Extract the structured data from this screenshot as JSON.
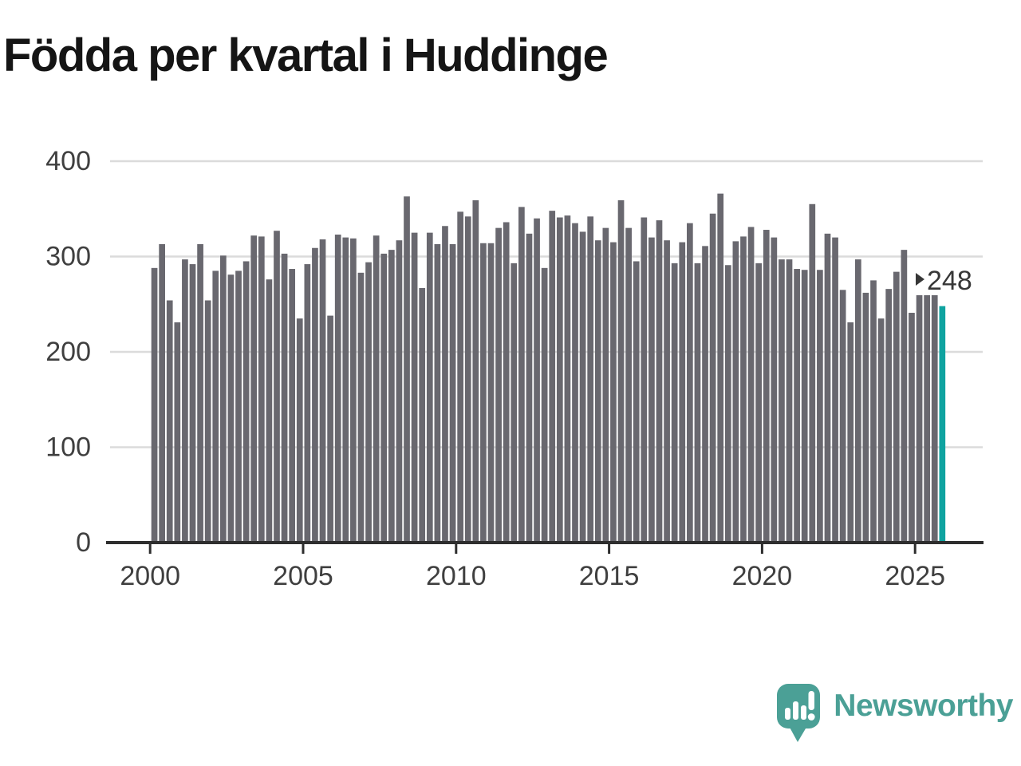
{
  "title": "Födda per kvartal i Huddinge",
  "annotation": {
    "marker": "right-triangle",
    "label": "248"
  },
  "logo": {
    "text": "Newsworthy"
  },
  "colors": {
    "title": "#151515",
    "bar": "#69686F",
    "highlight": "#0FA3A0",
    "grid": "#DBDBDB",
    "axis": "#2E2E2E",
    "tick_text": "#3f3f3f",
    "annotation_text": "#373737",
    "logo": "#4BA096",
    "background": "#FFFFFF"
  },
  "chart_data": {
    "type": "bar",
    "title": "Födda per kvartal i Huddinge",
    "xlabel": "",
    "ylabel": "",
    "ylim": [
      0,
      400
    ],
    "yticks": [
      0,
      100,
      200,
      300,
      400
    ],
    "xticks": [
      2000,
      2005,
      2010,
      2015,
      2020,
      2025
    ],
    "grid": "horizontal",
    "legend": "none",
    "bar_color": "#69686F",
    "highlight": {
      "index": 103,
      "category": "2025 K4",
      "value": 248,
      "label": "248",
      "color": "#0FA3A0"
    },
    "categories": [
      "2000 K1",
      "2000 K2",
      "2000 K3",
      "2000 K4",
      "2001 K1",
      "2001 K2",
      "2001 K3",
      "2001 K4",
      "2002 K1",
      "2002 K2",
      "2002 K3",
      "2002 K4",
      "2003 K1",
      "2003 K2",
      "2003 K3",
      "2003 K4",
      "2004 K1",
      "2004 K2",
      "2004 K3",
      "2004 K4",
      "2005 K1",
      "2005 K2",
      "2005 K3",
      "2005 K4",
      "2006 K1",
      "2006 K2",
      "2006 K3",
      "2006 K4",
      "2007 K1",
      "2007 K2",
      "2007 K3",
      "2007 K4",
      "2008 K1",
      "2008 K2",
      "2008 K3",
      "2008 K4",
      "2009 K1",
      "2009 K2",
      "2009 K3",
      "2009 K4",
      "2010 K1",
      "2010 K2",
      "2010 K3",
      "2010 K4",
      "2011 K1",
      "2011 K2",
      "2011 K3",
      "2011 K4",
      "2012 K1",
      "2012 K2",
      "2012 K3",
      "2012 K4",
      "2013 K1",
      "2013 K2",
      "2013 K3",
      "2013 K4",
      "2014 K1",
      "2014 K2",
      "2014 K3",
      "2014 K4",
      "2015 K1",
      "2015 K2",
      "2015 K3",
      "2015 K4",
      "2016 K1",
      "2016 K2",
      "2016 K3",
      "2016 K4",
      "2017 K1",
      "2017 K2",
      "2017 K3",
      "2017 K4",
      "2018 K1",
      "2018 K2",
      "2018 K3",
      "2018 K4",
      "2019 K1",
      "2019 K2",
      "2019 K3",
      "2019 K4",
      "2020 K1",
      "2020 K2",
      "2020 K3",
      "2020 K4",
      "2021 K1",
      "2021 K2",
      "2021 K3",
      "2021 K4",
      "2022 K1",
      "2022 K2",
      "2022 K3",
      "2022 K4",
      "2023 K1",
      "2023 K2",
      "2023 K3",
      "2023 K4",
      "2024 K1",
      "2024 K2",
      "2024 K3",
      "2024 K4",
      "2025 K1",
      "2025 K2",
      "2025 K3",
      "2025 K4"
    ],
    "values": [
      288,
      313,
      254,
      231,
      297,
      292,
      313,
      254,
      285,
      301,
      281,
      285,
      295,
      322,
      321,
      276,
      327,
      303,
      287,
      235,
      292,
      309,
      318,
      238,
      323,
      320,
      319,
      283,
      294,
      322,
      303,
      307,
      317,
      363,
      325,
      267,
      325,
      313,
      332,
      313,
      347,
      342,
      359,
      314,
      314,
      330,
      336,
      293,
      352,
      324,
      340,
      288,
      348,
      341,
      343,
      335,
      326,
      342,
      317,
      330,
      315,
      359,
      330,
      295,
      341,
      320,
      338,
      317,
      293,
      315,
      335,
      293,
      311,
      345,
      366,
      291,
      316,
      321,
      331,
      293,
      328,
      320,
      297,
      297,
      287,
      286,
      355,
      286,
      324,
      320,
      265,
      231,
      297,
      262,
      275,
      235,
      266,
      284,
      307,
      241,
      262,
      261,
      261,
      248
    ]
  }
}
